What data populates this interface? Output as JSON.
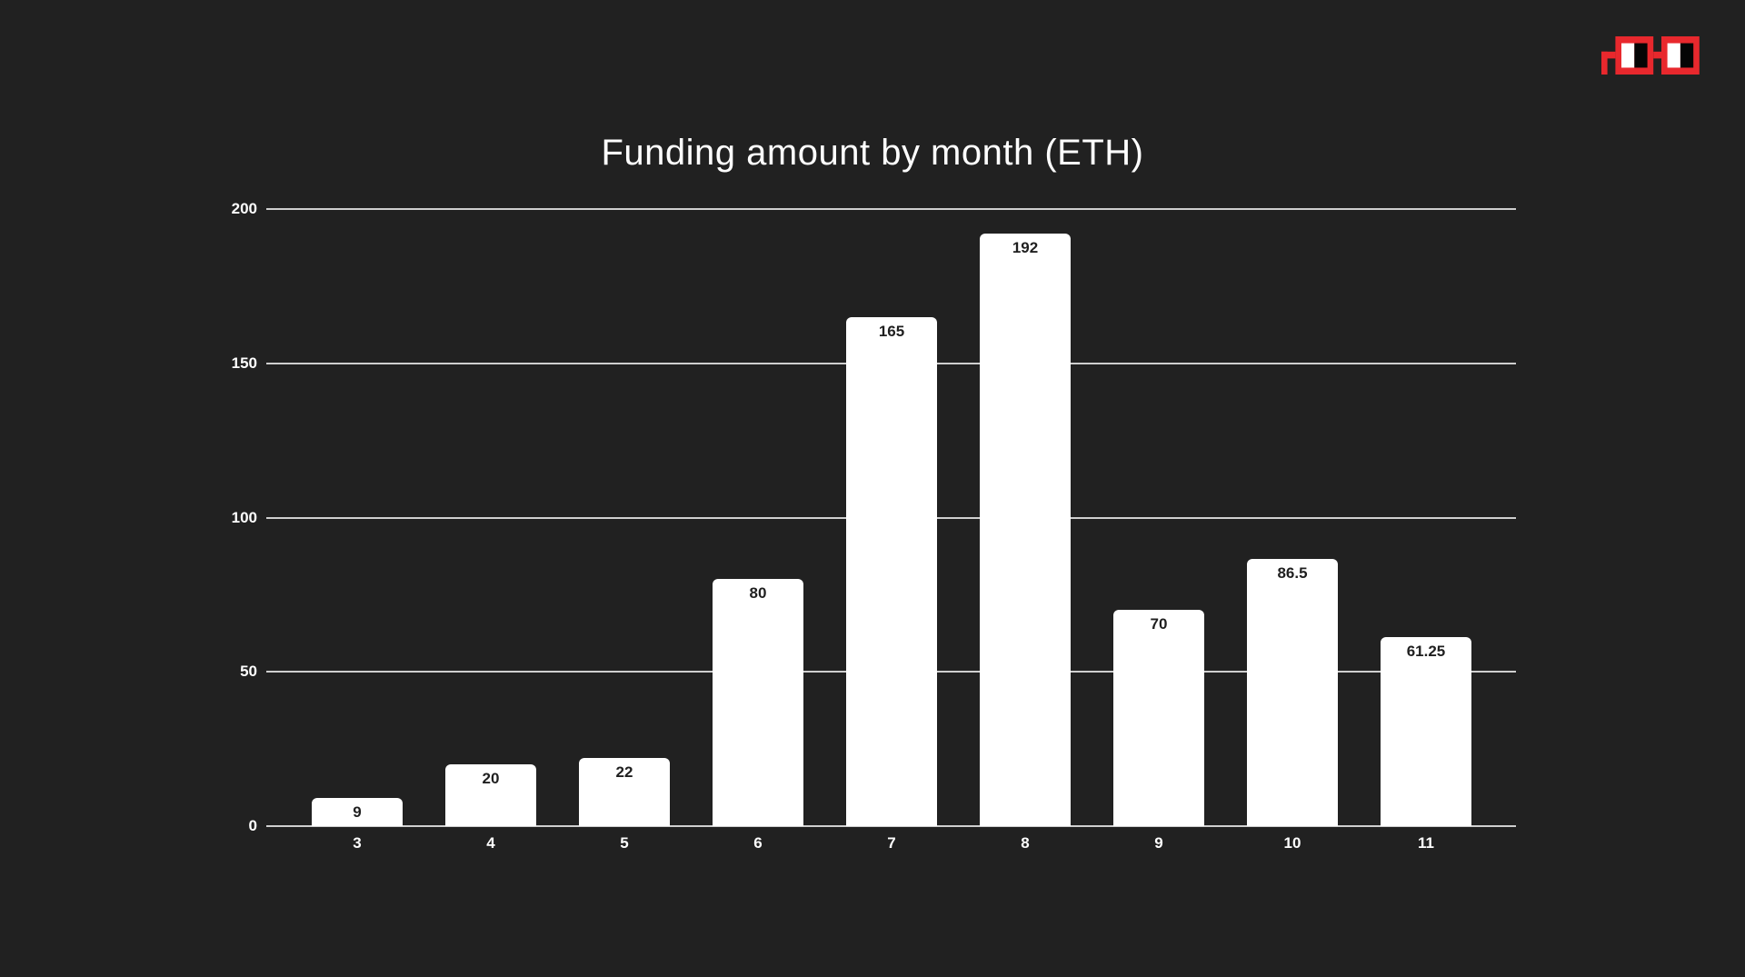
{
  "page": {
    "background_color": "#212121"
  },
  "logo": {
    "name": "noggles-pixel-glasses",
    "frame_color": "#e8282d",
    "lens_left_color": "#ffffff",
    "lens_right_color": "#050505"
  },
  "chart_data": {
    "type": "bar",
    "title": "Funding amount by month (ETH)",
    "categories": [
      "3",
      "4",
      "5",
      "6",
      "7",
      "8",
      "9",
      "10",
      "11"
    ],
    "values": [
      9,
      20,
      22,
      80,
      165,
      192,
      70,
      86.5,
      61.25
    ],
    "value_labels": [
      "9",
      "20",
      "22",
      "80",
      "165",
      "192",
      "70",
      "86.5",
      "61.25"
    ],
    "xlabel": "",
    "ylabel": "",
    "y_ticks": [
      0,
      50,
      100,
      150,
      200
    ],
    "ylim": [
      0,
      200
    ],
    "grid": "horizontal",
    "legend_position": "none",
    "bar_color": "#ffffff",
    "value_label_color": "#1f1f1f",
    "axis_label_color": "#ffffff",
    "gridline_color": "#cfcfcf",
    "background_color": "#212121",
    "title_color": "#ffffff"
  }
}
